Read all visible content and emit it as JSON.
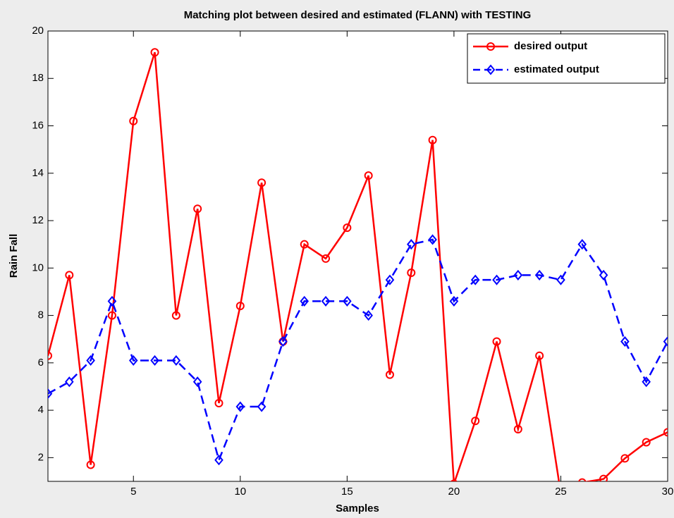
{
  "chart_data": {
    "type": "line",
    "title": "Matching plot between desired and estimated (FLANN) with TESTING",
    "xlabel": "Samples",
    "ylabel": "Rain Fall",
    "x": [
      1,
      2,
      3,
      4,
      5,
      6,
      7,
      8,
      9,
      10,
      11,
      12,
      13,
      14,
      15,
      16,
      17,
      18,
      19,
      20,
      21,
      22,
      23,
      24,
      25,
      26,
      27,
      28,
      29,
      30
    ],
    "series": [
      {
        "name": "desired output",
        "color": "#ff0000",
        "linestyle": "solid",
        "marker": "circle",
        "values": [
          6.3,
          9.7,
          1.7,
          8.0,
          16.2,
          19.1,
          8.0,
          12.5,
          4.3,
          8.4,
          13.6,
          6.9,
          11.0,
          10.4,
          11.7,
          13.9,
          5.5,
          9.8,
          15.4,
          0.9,
          3.55,
          6.9,
          3.2,
          6.3,
          0.5,
          0.95,
          1.1,
          1.97,
          2.65,
          3.07
        ]
      },
      {
        "name": "estimated output",
        "color": "#0000ff",
        "linestyle": "dashed",
        "marker": "diamond",
        "values": [
          4.7,
          5.2,
          6.1,
          8.6,
          6.1,
          6.1,
          6.1,
          5.2,
          1.9,
          4.15,
          4.15,
          6.9,
          8.6,
          8.6,
          8.6,
          8.0,
          9.5,
          11.0,
          11.2,
          8.6,
          9.5,
          9.5,
          9.7,
          9.7,
          9.5,
          11.0,
          9.7,
          6.9,
          5.2,
          6.9
        ]
      }
    ],
    "xlim": [
      1,
      30
    ],
    "xticks": [
      5,
      10,
      15,
      20,
      25,
      30
    ],
    "ylim": [
      1,
      20
    ],
    "yticks": [
      2,
      4,
      6,
      8,
      10,
      12,
      14,
      16,
      18,
      20
    ],
    "legend": "upper right",
    "grid": false
  }
}
